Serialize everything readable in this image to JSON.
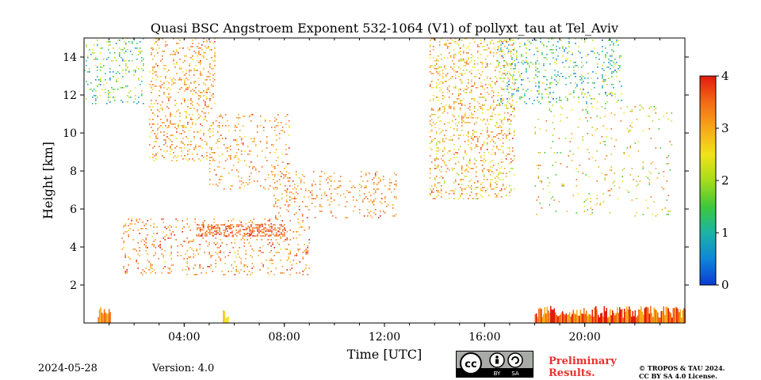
{
  "chart_data": {
    "type": "heatmap",
    "title": "Quasi BSC Angstroem Exponent 532-1064 (V1) of pollyxt_tau at Tel_Aviv",
    "xlabel": "Time [UTC]",
    "ylabel": "Height [km]",
    "xlim": [
      0,
      24
    ],
    "ylim": [
      0,
      15
    ],
    "x_ticks": [
      {
        "value": 4,
        "label": "04:00"
      },
      {
        "value": 8,
        "label": "08:00"
      },
      {
        "value": 12,
        "label": "12:00"
      },
      {
        "value": 16,
        "label": "16:00"
      },
      {
        "value": 20,
        "label": "20:00"
      }
    ],
    "y_ticks": [
      {
        "value": 2,
        "label": "2"
      },
      {
        "value": 4,
        "label": "4"
      },
      {
        "value": 6,
        "label": "6"
      },
      {
        "value": 8,
        "label": "8"
      },
      {
        "value": 10,
        "label": "10"
      },
      {
        "value": 12,
        "label": "12"
      },
      {
        "value": 14,
        "label": "14"
      }
    ],
    "colorbar": {
      "range": [
        0,
        4
      ],
      "ticks": [
        {
          "value": 0,
          "label": "0"
        },
        {
          "value": 1,
          "label": "1"
        },
        {
          "value": 2,
          "label": "2"
        },
        {
          "value": 3,
          "label": "3"
        },
        {
          "value": 4,
          "label": "4"
        }
      ],
      "colormap": [
        "#0a3bd6",
        "#0f86d8",
        "#1bb4a6",
        "#3ec83a",
        "#a6dc1a",
        "#f2e21a",
        "#f7a81a",
        "#f36a16",
        "#e31a0e"
      ]
    },
    "regions": [
      {
        "t0": 0.0,
        "t1": 2.4,
        "h0": 11.5,
        "h1": 15.0,
        "v_mean": 1.6,
        "v_spread": 1.2,
        "density": 0.12
      },
      {
        "t0": 2.6,
        "t1": 5.2,
        "h0": 8.5,
        "h1": 15.0,
        "v_mean": 3.1,
        "v_spread": 0.7,
        "density": 0.16
      },
      {
        "t0": 5.0,
        "t1": 8.2,
        "h0": 7.0,
        "h1": 11.0,
        "v_mean": 3.2,
        "v_spread": 0.6,
        "density": 0.1
      },
      {
        "t0": 1.5,
        "t1": 9.0,
        "h0": 2.5,
        "h1": 5.5,
        "v_mean": 3.3,
        "v_spread": 0.6,
        "density": 0.12
      },
      {
        "t0": 4.5,
        "t1": 8.0,
        "h0": 4.6,
        "h1": 5.2,
        "v_mean": 3.6,
        "v_spread": 0.3,
        "density": 0.45
      },
      {
        "t0": 7.5,
        "t1": 12.5,
        "h0": 5.5,
        "h1": 8.0,
        "v_mean": 3.3,
        "v_spread": 0.5,
        "density": 0.12
      },
      {
        "t0": 13.8,
        "t1": 17.2,
        "h0": 6.5,
        "h1": 15.0,
        "v_mean": 2.9,
        "v_spread": 0.9,
        "density": 0.18
      },
      {
        "t0": 16.5,
        "t1": 21.5,
        "h0": 11.5,
        "h1": 15.0,
        "v_mean": 1.4,
        "v_spread": 1.2,
        "density": 0.13
      },
      {
        "t0": 18.0,
        "t1": 23.5,
        "h0": 5.5,
        "h1": 11.5,
        "v_mean": 2.5,
        "v_spread": 1.1,
        "density": 0.04
      }
    ],
    "surface_bands": [
      {
        "t0": 0.55,
        "t1": 1.05,
        "h1": 0.85,
        "v_mean": 3.2
      },
      {
        "t0": 5.55,
        "t1": 5.75,
        "h1": 0.8,
        "v_mean": 2.6
      },
      {
        "t0": 18.0,
        "t1": 24.0,
        "h1": 0.9,
        "v_mean": 3.5
      }
    ]
  },
  "footer": {
    "date": "2024-05-28",
    "version": "Version: 4.0",
    "preliminary_line1": "Preliminary",
    "preliminary_line2": "Results.",
    "license_line1": "© TROPOS & TAU 2024.",
    "license_line2": "CC BY SA 4.0 License.",
    "cc_badge": {
      "text_cc": "cc",
      "text_by": "BY",
      "text_sa": "SA"
    }
  }
}
